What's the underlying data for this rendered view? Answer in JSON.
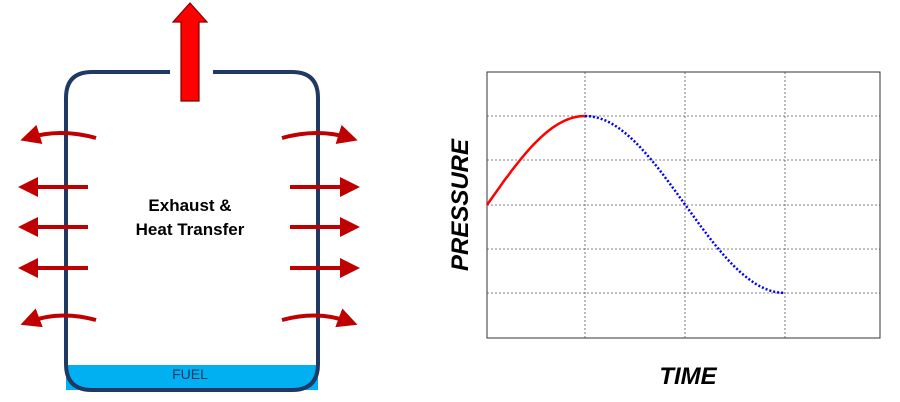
{
  "tank": {
    "label_lines": [
      "Exhaust &",
      "Heat Transfer"
    ],
    "fuel": "FUEL"
  },
  "plot": {
    "y_label": "PRESSURE",
    "x_label": "TIME"
  }
}
